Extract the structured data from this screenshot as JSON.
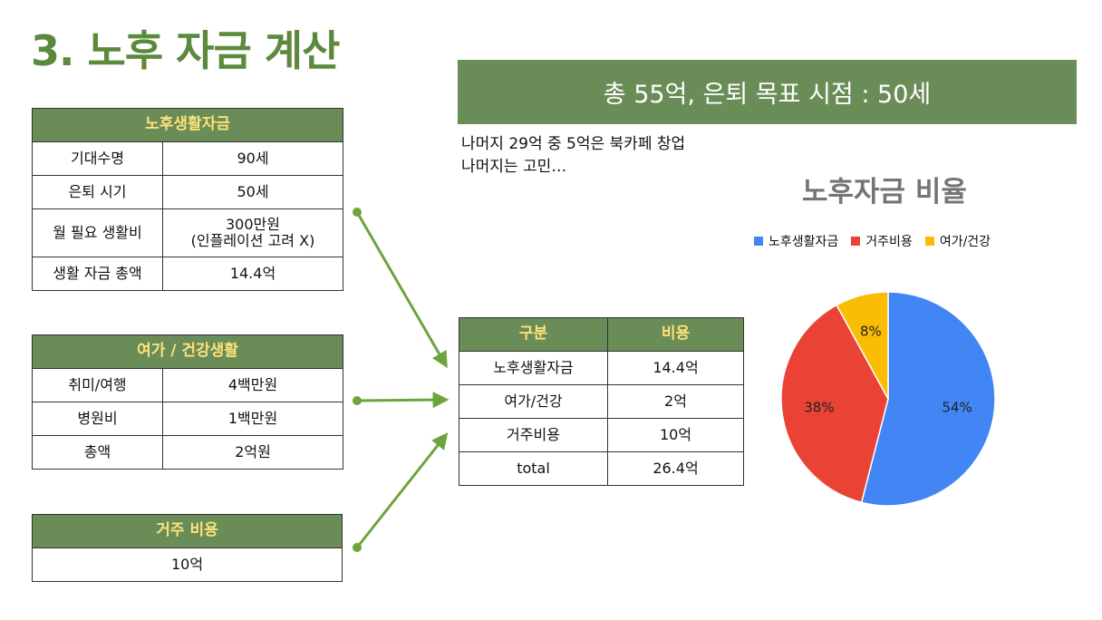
{
  "slide": {
    "title": "3. 노후 자금 계산"
  },
  "living_table": {
    "header": "노후생활자금",
    "rows": [
      {
        "label": "기대수명",
        "value": "90세"
      },
      {
        "label": "은퇴 시기",
        "value": "50세"
      },
      {
        "label": "월 필요 생활비",
        "value_line1": "300만원",
        "value_line2": "(인플레이션 고려 X)"
      },
      {
        "label": "생활 자금 총액",
        "value": "14.4억"
      }
    ]
  },
  "leisure_table": {
    "header": "여가 / 건강생활",
    "rows": [
      {
        "label": "취미/여행",
        "value": "4백만원"
      },
      {
        "label": "병원비",
        "value": "1백만원"
      },
      {
        "label": "총액",
        "value": "2억원"
      }
    ]
  },
  "housing_table": {
    "header": "거주 비용",
    "value": "10억"
  },
  "banner": {
    "text": "총 55억, 은퇴 목표 시점  : 50세"
  },
  "note": {
    "line1": "나머지 29억 중 5억은 북카페 창업",
    "line2": "나머지는 고민…"
  },
  "summary_table": {
    "headers": [
      "구분",
      "비용"
    ],
    "rows": [
      {
        "label": "노후생활자금",
        "value": "14.4억"
      },
      {
        "label": "여가/건강",
        "value": "2억"
      },
      {
        "label": "거주비용",
        "value": "10억"
      },
      {
        "label": "total",
        "value": "26.4억"
      }
    ]
  },
  "chart_data": {
    "type": "pie",
    "title": "노후자금 비율",
    "legend_position": "top",
    "slices": [
      {
        "name": "노후생활자금",
        "value": 54,
        "label": "54%",
        "color": "#4285f4"
      },
      {
        "name": "거주비용",
        "value": 38,
        "label": "38%",
        "color": "#ea4335"
      },
      {
        "name": "여가/건강",
        "value": 8,
        "label": "8%",
        "color": "#fbbc04"
      }
    ]
  },
  "colors": {
    "accent": "#5b8a3c",
    "header_bg": "#6a8c57",
    "header_text": "#fde27a",
    "arrow": "#6fa33e"
  }
}
